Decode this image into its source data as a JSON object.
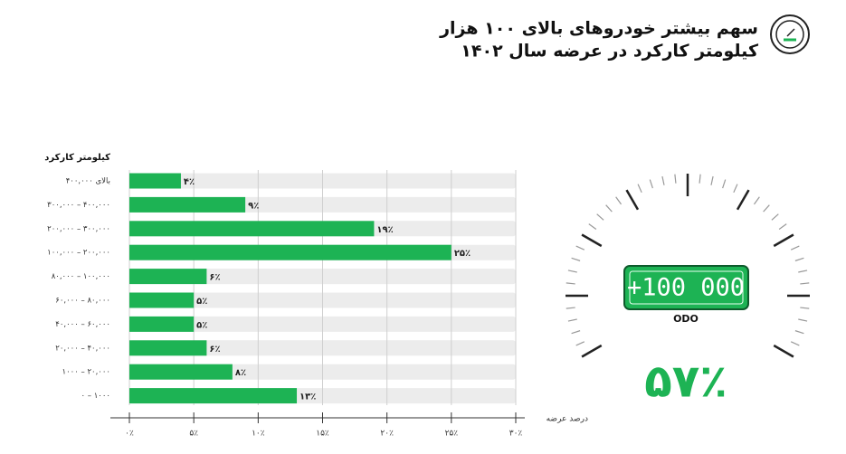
{
  "header": {
    "title_lines": [
      "سهم بیشتر خودروهای بالای ۱۰۰ هزار",
      "کیلومتر کارکرد در عرضه سال ۱۴۰۲"
    ]
  },
  "chart_data": {
    "type": "barh",
    "y_label": "کیلومتر کارکرد",
    "x_label": "درصد عرضه",
    "categories": [
      "بالای ۴۰۰,۰۰۰",
      "۳۰۰,۰۰۰ – ۴۰۰,۰۰۰",
      "۲۰۰,۰۰۰ – ۳۰۰,۰۰۰",
      "۱۰۰,۰۰۰ – ۲۰۰,۰۰۰",
      "۸۰,۰۰۰ – ۱۰۰,۰۰۰",
      "۶۰,۰۰۰ – ۸۰,۰۰۰",
      "۴۰,۰۰۰ – ۶۰,۰۰۰",
      "۲۰,۰۰۰ – ۴۰,۰۰۰",
      "۱۰۰۰ – ۲۰,۰۰۰",
      "۰ – ۱۰۰۰"
    ],
    "values": [
      4,
      9,
      19,
      25,
      6,
      5,
      5,
      6,
      8,
      13
    ],
    "value_labels": [
      "۴٪",
      "۹٪",
      "۱۹٪",
      "۲۵٪",
      "۶٪",
      "۵٪",
      "۵٪",
      "۶٪",
      "۸٪",
      "۱۳٪"
    ],
    "color": "#1db354",
    "xlim": [
      0,
      30
    ],
    "xticks": [
      {
        "value": 0,
        "label": "۰٪"
      },
      {
        "value": 5,
        "label": "۵٪"
      },
      {
        "value": 10,
        "label": "۱۰٪"
      },
      {
        "value": 15,
        "label": "۱۵٪"
      },
      {
        "value": 20,
        "label": "۲۰٪"
      },
      {
        "value": 25,
        "label": "۲۵٪"
      },
      {
        "value": 30,
        "label": "۳۰٪"
      }
    ],
    "grid": true
  },
  "gauge": {
    "odometer": "+100 000",
    "odometer_label": "ODO",
    "headline": "۵۷٪"
  }
}
